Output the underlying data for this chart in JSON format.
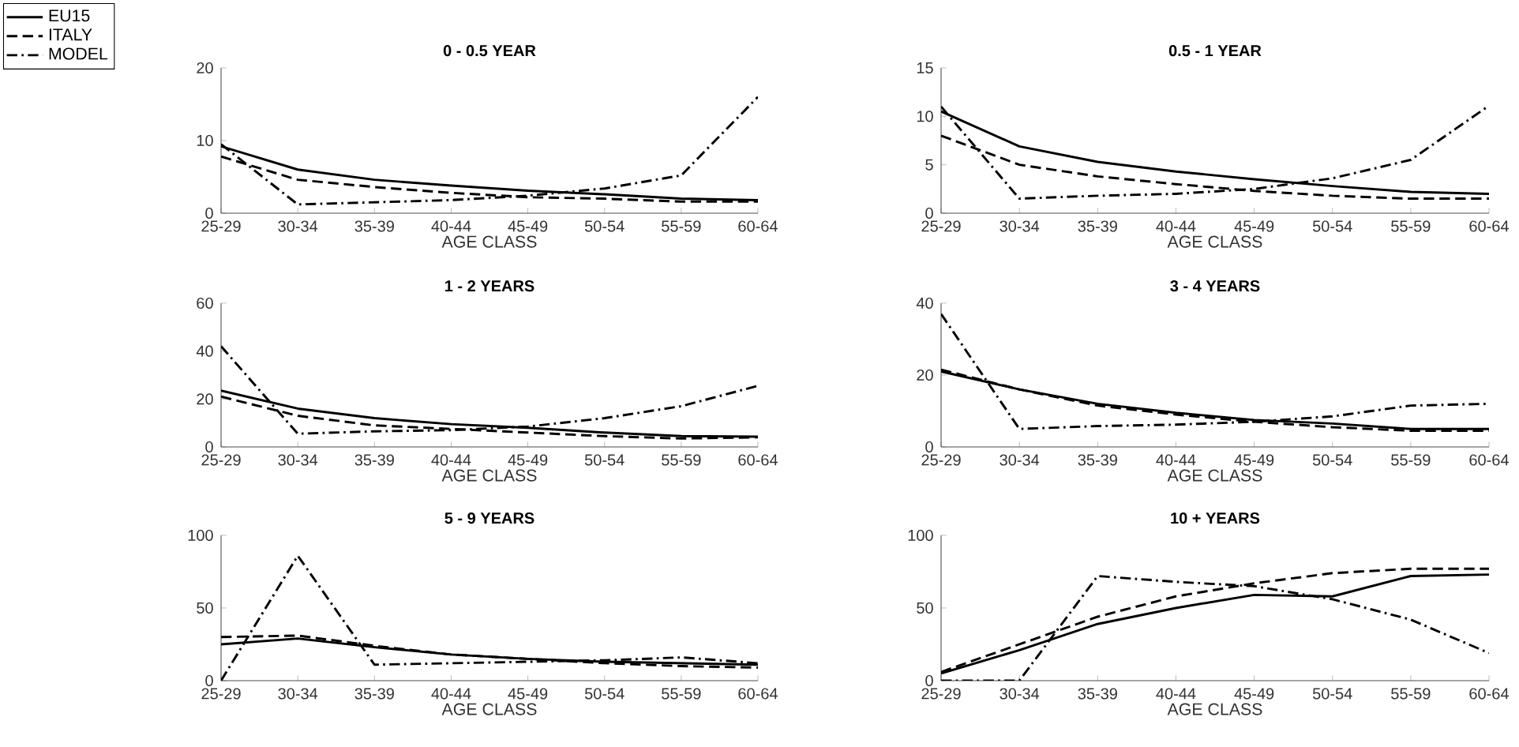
{
  "chart_data": [
    {
      "type": "line",
      "title": "0 - 0.5 YEAR",
      "xlabel": "AGE CLASS",
      "categories": [
        "25-29",
        "30-34",
        "35-39",
        "40-44",
        "45-49",
        "50-54",
        "55-59",
        "60-64"
      ],
      "ylim": [
        0,
        20
      ],
      "yticks": [
        0,
        10,
        20
      ],
      "legend": "top left",
      "series": [
        {
          "name": "EU15",
          "color": "#000000",
          "line_style": "solid",
          "values": [
            9.2,
            6,
            4.6,
            3.8,
            3.1,
            2.6,
            2.0,
            1.8
          ]
        },
        {
          "name": "ITALY",
          "color": "#000000",
          "line_style": "dashed",
          "values": [
            7.8,
            4.6,
            3.6,
            2.8,
            2.2,
            2.0,
            1.6,
            1.6
          ]
        },
        {
          "name": "MODEL",
          "color": "#000000",
          "line_style": "dashdot",
          "values": [
            9.5,
            1.2,
            1.5,
            1.8,
            2.4,
            3.4,
            5.2,
            16
          ]
        }
      ]
    },
    {
      "type": "line",
      "title": "0.5 - 1 YEAR",
      "xlabel": "AGE CLASS",
      "categories": [
        "25-29",
        "30-34",
        "35-39",
        "40-44",
        "45-49",
        "50-54",
        "55-59",
        "60-64"
      ],
      "ylim": [
        0,
        15
      ],
      "yticks": [
        0,
        5,
        10,
        15
      ],
      "series": [
        {
          "color": "#000000",
          "line_style": "solid",
          "values": [
            10.5,
            6.9,
            5.3,
            4.3,
            3.5,
            2.8,
            2.2,
            2.0
          ]
        },
        {
          "color": "#000000",
          "line_style": "dashed",
          "values": [
            8,
            5,
            3.8,
            3.0,
            2.3,
            1.8,
            1.5,
            1.5
          ]
        },
        {
          "color": "#000000",
          "line_style": "dashdot",
          "values": [
            11,
            1.5,
            1.8,
            2.0,
            2.5,
            3.6,
            5.5,
            11.1
          ]
        }
      ]
    },
    {
      "type": "line",
      "title": "1 - 2 YEARS",
      "xlabel": "AGE CLASS",
      "categories": [
        "25-29",
        "30-34",
        "35-39",
        "40-44",
        "45-49",
        "50-54",
        "55-59",
        "60-64"
      ],
      "ylim": [
        0,
        60
      ],
      "yticks": [
        0,
        20,
        40,
        60
      ],
      "series": [
        {
          "color": "#000000",
          "line_style": "solid",
          "values": [
            23.5,
            16,
            12,
            9.5,
            8,
            6,
            4.5,
            4.3
          ]
        },
        {
          "color": "#000000",
          "line_style": "dashed",
          "values": [
            21,
            13,
            9,
            7.5,
            6,
            4.5,
            3.5,
            4
          ]
        },
        {
          "color": "#000000",
          "line_style": "dashdot",
          "values": [
            42,
            5.5,
            6.5,
            7,
            8.5,
            12,
            17,
            25.5
          ]
        }
      ]
    },
    {
      "type": "line",
      "title": "3 - 4 YEARS",
      "xlabel": "AGE CLASS",
      "categories": [
        "25-29",
        "30-34",
        "35-39",
        "40-44",
        "45-49",
        "50-54",
        "55-59",
        "60-64"
      ],
      "ylim": [
        0,
        40
      ],
      "yticks": [
        0,
        20,
        40
      ],
      "series": [
        {
          "color": "#000000",
          "line_style": "solid",
          "values": [
            21,
            16,
            12,
            9.5,
            7.5,
            6.5,
            5,
            5
          ]
        },
        {
          "color": "#000000",
          "line_style": "dashed",
          "values": [
            21.5,
            16,
            11.5,
            9,
            7,
            5.5,
            4.5,
            4.5
          ]
        },
        {
          "color": "#000000",
          "line_style": "dashdot",
          "values": [
            37,
            5,
            5.8,
            6.2,
            7,
            8.5,
            11.5,
            12
          ]
        }
      ]
    },
    {
      "type": "line",
      "title": "5 - 9 YEARS",
      "xlabel": "AGE CLASS",
      "categories": [
        "25-29",
        "30-34",
        "35-39",
        "40-44",
        "45-49",
        "50-54",
        "55-59",
        "60-64"
      ],
      "ylim": [
        0,
        100
      ],
      "yticks": [
        0,
        50,
        100
      ],
      "series": [
        {
          "color": "#000000",
          "line_style": "solid",
          "values": [
            25,
            29,
            23,
            18,
            15,
            13,
            12,
            11
          ]
        },
        {
          "color": "#000000",
          "line_style": "dashed",
          "values": [
            30,
            31,
            24,
            18,
            15,
            12,
            10,
            9
          ]
        },
        {
          "color": "#000000",
          "line_style": "dashdot",
          "values": [
            0,
            86,
            11,
            12,
            13,
            14,
            16,
            12
          ]
        }
      ]
    },
    {
      "type": "line",
      "title": "10 + YEARS",
      "xlabel": "AGE CLASS",
      "categories": [
        "25-29",
        "30-34",
        "35-39",
        "40-44",
        "45-49",
        "50-54",
        "55-59",
        "60-64"
      ],
      "ylim": [
        0,
        100
      ],
      "yticks": [
        0,
        50,
        100
      ],
      "series": [
        {
          "color": "#000000",
          "line_style": "solid",
          "values": [
            5,
            21,
            39,
            50,
            59,
            58,
            72,
            73
          ]
        },
        {
          "color": "#000000",
          "line_style": "dashed",
          "values": [
            6,
            25,
            44,
            58,
            67,
            74,
            77,
            77
          ]
        },
        {
          "color": "#000000",
          "line_style": "dashdot",
          "values": [
            0,
            0,
            72,
            68,
            65,
            56,
            42,
            19
          ]
        }
      ]
    }
  ]
}
